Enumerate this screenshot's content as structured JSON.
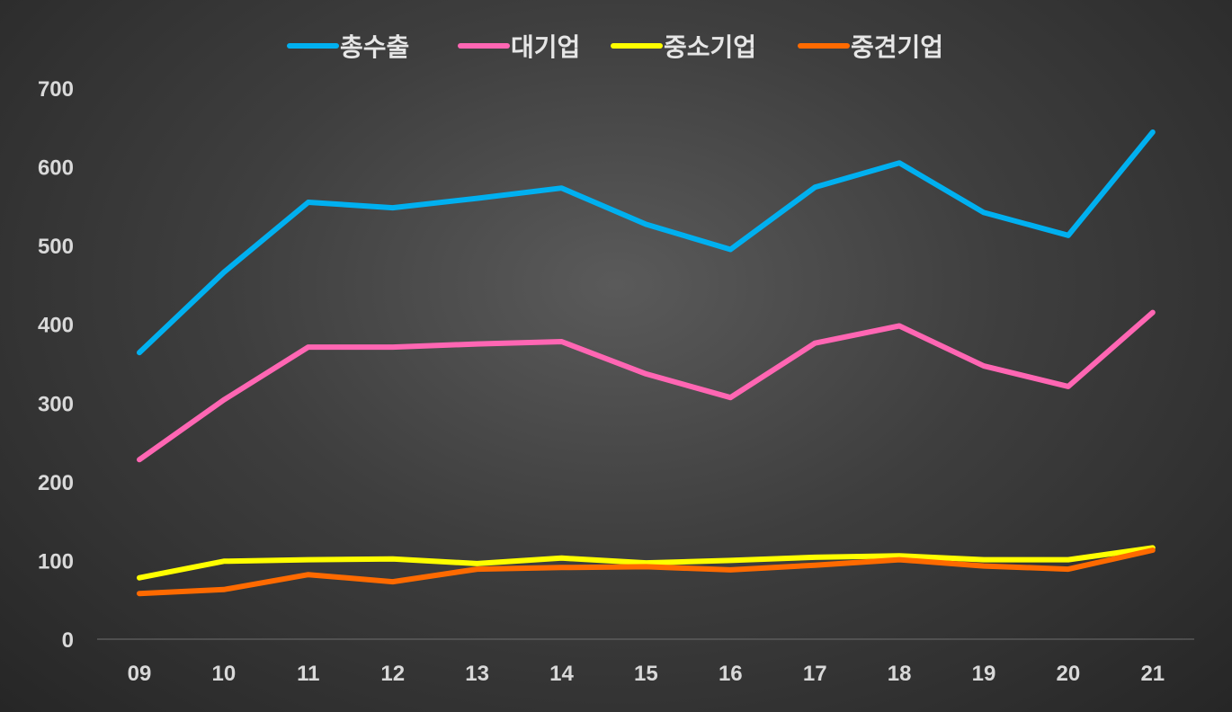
{
  "chart_data": {
    "type": "line",
    "title": "",
    "xlabel": "",
    "ylabel": "",
    "categories": [
      "09",
      "10",
      "11",
      "12",
      "13",
      "14",
      "15",
      "16",
      "17",
      "18",
      "19",
      "20",
      "21"
    ],
    "ylim": [
      0,
      700
    ],
    "yticks": [
      "0",
      "100",
      "200",
      "300",
      "400",
      "500",
      "600",
      "700"
    ],
    "grid": false,
    "legend_position": "top",
    "series": [
      {
        "name": "총수출",
        "color": "#00b0f0",
        "values": [
          364,
          466,
          555,
          548,
          560,
          573,
          527,
          495,
          574,
          605,
          542,
          513,
          644
        ]
      },
      {
        "name": "대기업",
        "color": "#ff66b3",
        "values": [
          228,
          304,
          371,
          371,
          375,
          378,
          337,
          307,
          376,
          398,
          347,
          321,
          415
        ]
      },
      {
        "name": "중소기업",
        "color": "#ffff00",
        "values": [
          78,
          99,
          101,
          102,
          96,
          103,
          97,
          100,
          104,
          106,
          101,
          101,
          116
        ]
      },
      {
        "name": "중견기업",
        "color": "#ff6a00",
        "values": [
          58,
          63,
          82,
          73,
          89,
          91,
          92,
          88,
          94,
          101,
          93,
          89,
          113
        ]
      }
    ]
  }
}
